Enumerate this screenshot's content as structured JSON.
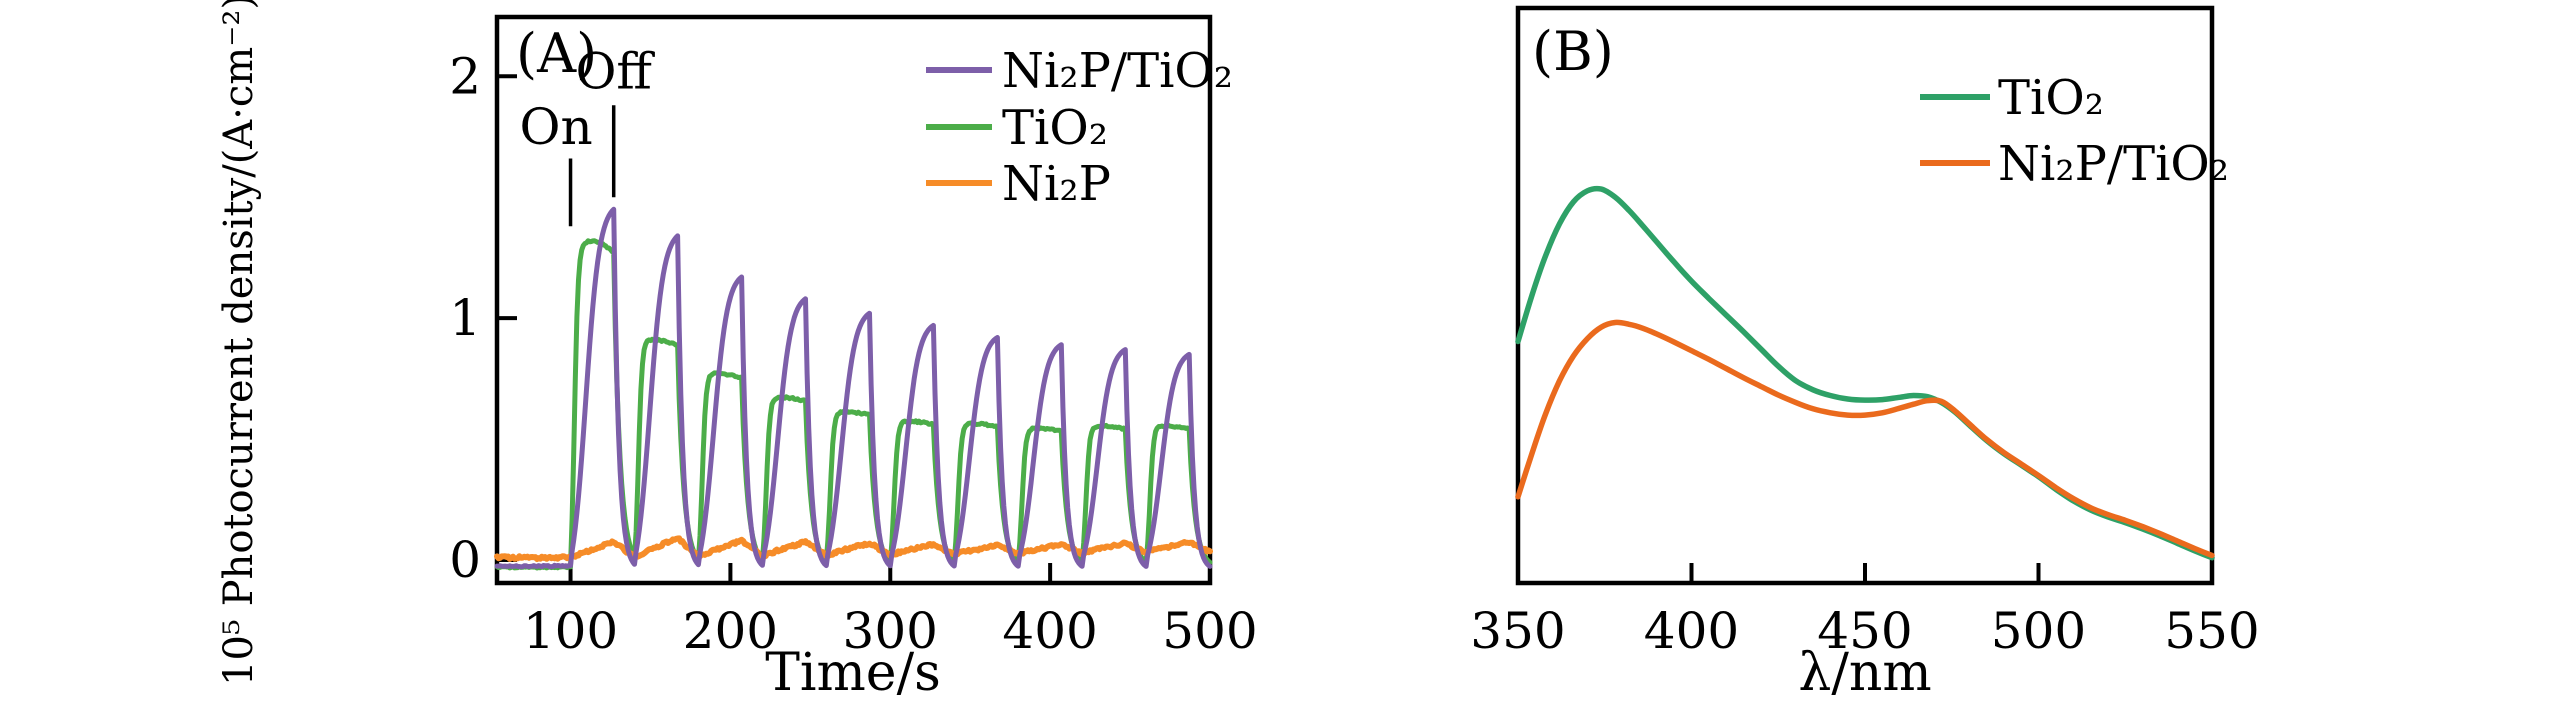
{
  "figure": {
    "background": "#ffffff",
    "text_color": "#000000",
    "border_color": "#000000"
  },
  "chart_data": [
    {
      "id": "A",
      "type": "line",
      "panel_label": "(A)",
      "xlabel": "Time/s",
      "ylabel": "10⁵ Photocurrent density/(A·cm⁻²)",
      "xlim": [
        54,
        500
      ],
      "ylim": [
        -0.095,
        2.245
      ],
      "xticks": [
        100,
        200,
        300,
        400,
        500
      ],
      "yticks": [
        0,
        1,
        2
      ],
      "grid": false,
      "legend_position": "top-right",
      "annotations": [
        {
          "label": "On",
          "x": 100,
          "label_x": 91,
          "line_y": [
            1.38,
            1.66
          ],
          "label_y": 1.72
        },
        {
          "label": "Off",
          "x": 127,
          "label_x": 127,
          "line_y": [
            1.5,
            1.88
          ],
          "label_y": 1.95
        }
      ],
      "light_cycles": {
        "first_on": 100,
        "on_duration": 27,
        "period": 40,
        "count": 10
      },
      "series": [
        {
          "name": "Ni₂P/TiO₂",
          "color": "#7D5FA9",
          "shape": "slow-rise",
          "peaks": [
            1.45,
            1.34,
            1.17,
            1.08,
            1.02,
            0.97,
            0.92,
            0.89,
            0.87,
            0.85
          ],
          "baseline": -0.025
        },
        {
          "name": "TiO₂",
          "color": "#4CAD49",
          "shape": "fast-rise",
          "peaks": [
            1.32,
            0.92,
            0.78,
            0.68,
            0.62,
            0.58,
            0.57,
            0.55,
            0.56,
            0.56
          ],
          "baseline": -0.03
        },
        {
          "name": "Ni₂P",
          "color": "#F68C28",
          "shape": "pulse-bump",
          "peaks": [
            0.075,
            0.09,
            0.08,
            0.075,
            0.07,
            0.065,
            0.06,
            0.065,
            0.07,
            0.075
          ],
          "baseline": 0.01
        }
      ]
    },
    {
      "id": "B",
      "type": "line",
      "panel_label": "(B)",
      "xlabel": "λ/nm",
      "ylabel": "",
      "xlim": [
        350,
        550
      ],
      "ylim": [
        0,
        1
      ],
      "xticks": [
        350,
        400,
        450,
        500,
        550
      ],
      "yticks": [],
      "grid": false,
      "legend_position": "top-center-right",
      "series": [
        {
          "name": "TiO₂",
          "color": "#2EA167",
          "x": [
            350,
            354,
            358,
            362,
            366,
            370,
            374,
            378,
            382,
            386,
            390,
            395,
            400,
            405,
            410,
            415,
            420,
            425,
            430,
            435,
            440,
            445,
            450,
            455,
            460,
            464,
            468,
            472,
            476,
            480,
            485,
            490,
            495,
            500,
            505,
            510,
            515,
            520,
            525,
            530,
            535,
            540,
            545,
            550
          ],
          "y": [
            0.42,
            0.5,
            0.57,
            0.625,
            0.663,
            0.682,
            0.685,
            0.671,
            0.648,
            0.621,
            0.593,
            0.558,
            0.525,
            0.495,
            0.466,
            0.437,
            0.407,
            0.377,
            0.352,
            0.336,
            0.326,
            0.32,
            0.318,
            0.319,
            0.323,
            0.326,
            0.324,
            0.314,
            0.297,
            0.275,
            0.248,
            0.225,
            0.205,
            0.185,
            0.163,
            0.143,
            0.127,
            0.115,
            0.105,
            0.094,
            0.082,
            0.069,
            0.056,
            0.044
          ]
        },
        {
          "name": "Ni₂P/TiO₂",
          "color": "#EA6A1D",
          "x": [
            350,
            354,
            358,
            362,
            366,
            370,
            374,
            378,
            382,
            386,
            390,
            395,
            400,
            405,
            410,
            415,
            420,
            425,
            430,
            435,
            440,
            445,
            450,
            455,
            460,
            464,
            468,
            472,
            476,
            480,
            485,
            490,
            495,
            500,
            505,
            510,
            515,
            520,
            525,
            530,
            535,
            540,
            545,
            550
          ],
          "y": [
            0.15,
            0.225,
            0.295,
            0.352,
            0.395,
            0.425,
            0.445,
            0.453,
            0.45,
            0.443,
            0.433,
            0.419,
            0.404,
            0.389,
            0.373,
            0.357,
            0.342,
            0.327,
            0.314,
            0.303,
            0.296,
            0.292,
            0.292,
            0.296,
            0.304,
            0.311,
            0.317,
            0.316,
            0.299,
            0.277,
            0.25,
            0.227,
            0.207,
            0.187,
            0.166,
            0.147,
            0.131,
            0.119,
            0.109,
            0.098,
            0.086,
            0.073,
            0.06,
            0.048
          ]
        }
      ]
    }
  ]
}
